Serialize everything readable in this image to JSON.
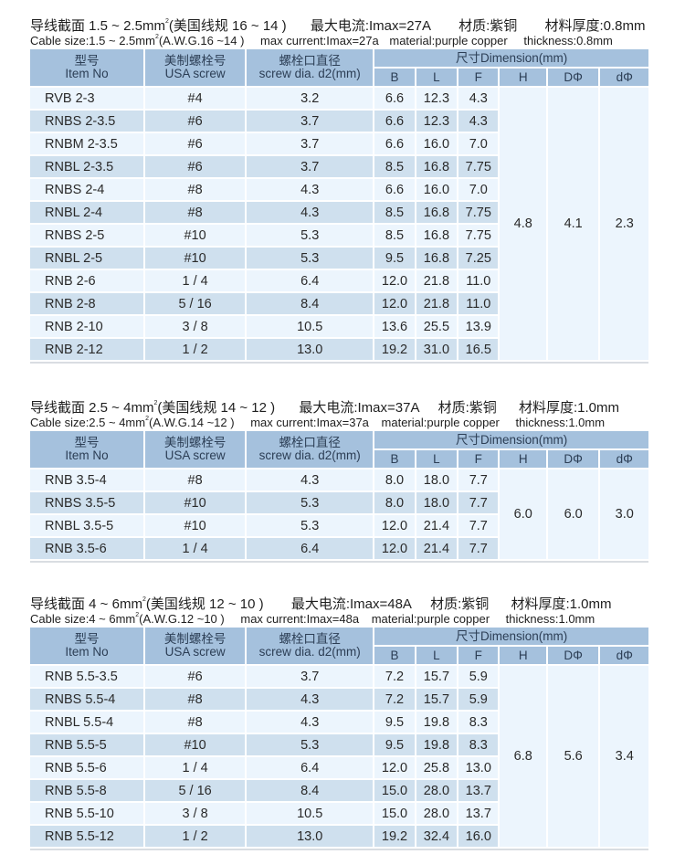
{
  "sections": [
    {
      "title_cn": {
        "cable": "导线截面 1.5 ~ 2.5mm",
        "awg": "(美国线规 16 ~ 14 )",
        "current": "最大电流:Imax=27A",
        "material": "材质:紫铜",
        "thickness": "材料厚度:0.8mm"
      },
      "title_en": {
        "cable": "Cable size:1.5 ~ 2.5mm",
        "awg": "(A.W.G.16 ~14 )",
        "current": "max current:Imax=27a",
        "material": "material:purple copper",
        "thickness": "thickness:0.8mm"
      },
      "header": {
        "item_cn": "型号",
        "item_en": "Item No",
        "screw_cn": "美制螺栓号",
        "screw_en": "USA screw",
        "dia_cn": "螺栓口直径",
        "dia_en": "screw dia. d2(mm)",
        "dimension": "尺寸Dimension(mm)",
        "cols": [
          "B",
          "L",
          "F",
          "H",
          "DΦ",
          "dΦ"
        ]
      },
      "shared": {
        "H": "4.8",
        "D": "4.1",
        "d": "2.3"
      },
      "rows": [
        [
          "RVB 2-3",
          "#4",
          "3.2",
          "6.6",
          "12.3",
          "4.3"
        ],
        [
          "RNBS 2-3.5",
          "#6",
          "3.7",
          "6.6",
          "12.3",
          "4.3"
        ],
        [
          "RNBM 2-3.5",
          "#6",
          "3.7",
          "6.6",
          "16.0",
          "7.0"
        ],
        [
          "RNBL 2-3.5",
          "#6",
          "3.7",
          "8.5",
          "16.8",
          "7.75"
        ],
        [
          "RNBS 2-4",
          "#8",
          "4.3",
          "6.6",
          "16.0",
          "7.0"
        ],
        [
          "RNBL 2-4",
          "#8",
          "4.3",
          "8.5",
          "16.8",
          "7.75"
        ],
        [
          "RNBS 2-5",
          "#10",
          "5.3",
          "8.5",
          "16.8",
          "7.75"
        ],
        [
          "RNBL 2-5",
          "#10",
          "5.3",
          "9.5",
          "16.8",
          "7.25"
        ],
        [
          "RNB 2-6",
          "1 / 4",
          "6.4",
          "12.0",
          "21.8",
          "11.0"
        ],
        [
          "RNB 2-8",
          "5 / 16",
          "8.4",
          "12.0",
          "21.8",
          "11.0"
        ],
        [
          "RNB 2-10",
          "3 / 8",
          "10.5",
          "13.6",
          "25.5",
          "13.9"
        ],
        [
          "RNB 2-12",
          "1 / 2",
          "13.0",
          "19.2",
          "31.0",
          "16.5"
        ]
      ]
    },
    {
      "title_cn": {
        "cable": "导线截面 2.5 ~ 4mm",
        "awg": "(美国线规 14 ~ 12 )",
        "current": "最大电流:Imax=37A",
        "material": "材质:紫铜",
        "thickness": "材料厚度:1.0mm"
      },
      "title_en": {
        "cable": "Cable size:2.5 ~ 4mm",
        "awg": "(A.W.G.14 ~12 )",
        "current": "max current:Imax=37a",
        "material": "material:purple copper",
        "thickness": "thickness:1.0mm"
      },
      "header": {
        "item_cn": "型号",
        "item_en": "Item No",
        "screw_cn": "美制螺栓号",
        "screw_en": "USA screw",
        "dia_cn": "螺栓口直径",
        "dia_en": "screw dia. d2(mm)",
        "dimension": "尺寸Dimension(mm)",
        "cols": [
          "B",
          "L",
          "F",
          "H",
          "DΦ",
          "dΦ"
        ]
      },
      "shared": {
        "H": "6.0",
        "D": "6.0",
        "d": "3.0"
      },
      "rows": [
        [
          "RNB 3.5-4",
          "#8",
          "4.3",
          "8.0",
          "18.0",
          "7.7"
        ],
        [
          "RNBS 3.5-5",
          "#10",
          "5.3",
          "8.0",
          "18.0",
          "7.7"
        ],
        [
          "RNBL 3.5-5",
          "#10",
          "5.3",
          "12.0",
          "21.4",
          "7.7"
        ],
        [
          "RNB 3.5-6",
          "1 / 4",
          "6.4",
          "12.0",
          "21.4",
          "7.7"
        ]
      ]
    },
    {
      "title_cn": {
        "cable": "导线截面 4 ~ 6mm",
        "awg": "(美国线规 12 ~ 10 )",
        "current": "最大电流:Imax=48A",
        "material": "材质:紫铜",
        "thickness": "材料厚度:1.0mm"
      },
      "title_en": {
        "cable": "Cable size:4 ~ 6mm",
        "awg": "(A.W.G.12 ~10 )",
        "current": "max current:Imax=48a",
        "material": "material:purple copper",
        "thickness": "thickness:1.0mm"
      },
      "header": {
        "item_cn": "型号",
        "item_en": "Item No",
        "screw_cn": "美制螺栓号",
        "screw_en": "USA screw",
        "dia_cn": "螺栓口直径",
        "dia_en": "screw dia. d2(mm)",
        "dimension": "尺寸Dimension(mm)",
        "cols": [
          "B",
          "L",
          "F",
          "H",
          "DΦ",
          "dΦ"
        ]
      },
      "shared": {
        "H": "6.8",
        "D": "5.6",
        "d": "3.4"
      },
      "rows": [
        [
          "RNB 5.5-3.5",
          "#6",
          "3.7",
          "7.2",
          "15.7",
          "5.9"
        ],
        [
          "RNBS 5.5-4",
          "#8",
          "4.3",
          "7.2",
          "15.7",
          "5.9"
        ],
        [
          "RNBL 5.5-4",
          "#8",
          "4.3",
          "9.5",
          "19.8",
          "8.3"
        ],
        [
          "RNB 5.5-5",
          "#10",
          "5.3",
          "9.5",
          "19.8",
          "8.3"
        ],
        [
          "RNB 5.5-6",
          "1 / 4",
          "6.4",
          "12.0",
          "25.8",
          "13.0"
        ],
        [
          "RNB 5.5-8",
          "5 / 16",
          "8.4",
          "15.0",
          "28.0",
          "13.7"
        ],
        [
          "RNB 5.5-10",
          "3 / 8",
          "10.5",
          "15.0",
          "28.0",
          "13.7"
        ],
        [
          "RNB 5.5-12",
          "1 / 2",
          "13.0",
          "19.2",
          "32.4",
          "16.0"
        ]
      ]
    }
  ],
  "colors": {
    "header_bg": "#a5c1dd",
    "row_light": "#ecf5fd",
    "row_dark": "#cfe0ee"
  }
}
